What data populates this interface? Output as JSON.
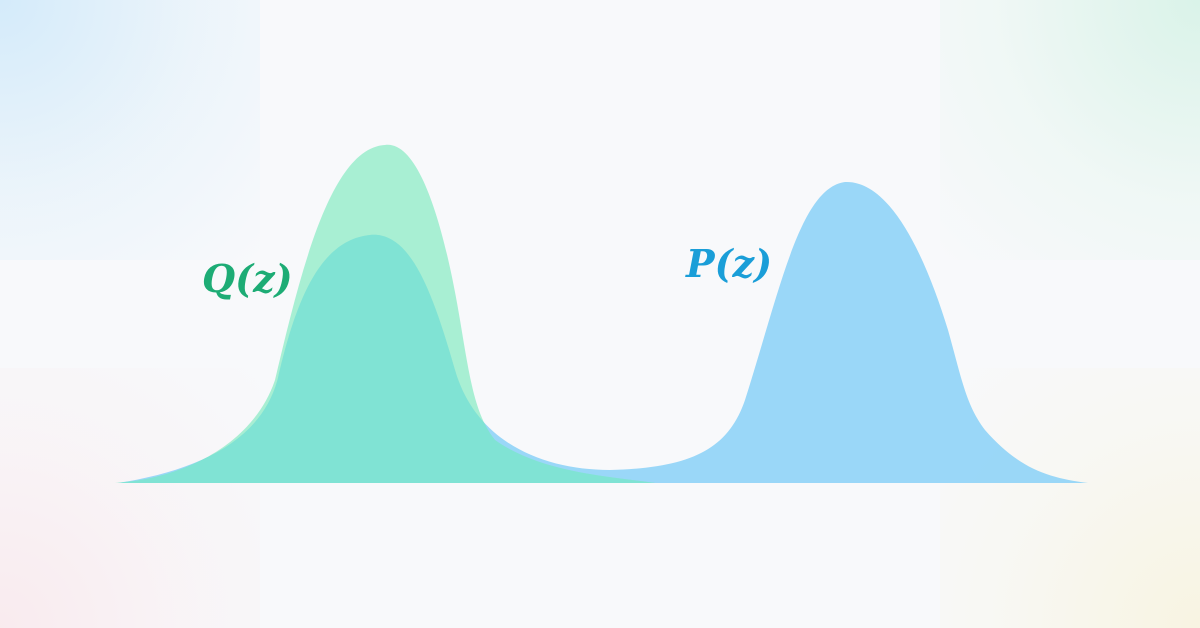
{
  "labels": {
    "q": "Q(z)",
    "p": "P(z)"
  },
  "colors": {
    "p_fill": "#8fd3f7",
    "q_fill": "#7ee5bf",
    "overlap_fill": "#80e3d4",
    "q_label": "#1dac75",
    "p_label": "#1a9ed8",
    "background": "#f8f9fb"
  }
}
